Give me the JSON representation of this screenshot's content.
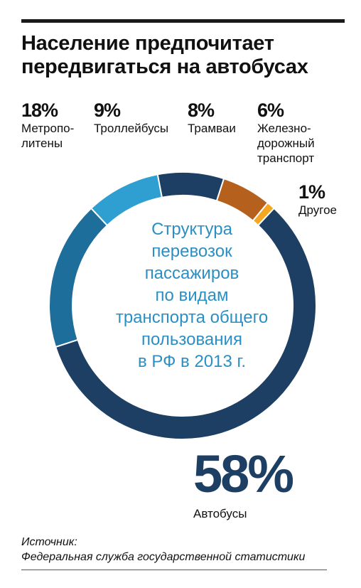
{
  "chart_data": {
    "type": "pie",
    "title": "Население предпочитает передвигаться на автобусах",
    "center_text": "Структура\nперевозок\nпассажиров\nпо видам\nтранспорта общего\nпользования\nв РФ в 2013 г.",
    "slices": [
      {
        "label": "Автобусы",
        "value": 58,
        "value_label": "58%",
        "color": "#1d3f63"
      },
      {
        "label": "Метропо-\nлитены",
        "value": 18,
        "value_label": "18%",
        "color": "#1e6e9c"
      },
      {
        "label": "Троллейбусы",
        "value": 9,
        "value_label": "9%",
        "color": "#2e9fd0"
      },
      {
        "label": "Трамваи",
        "value": 8,
        "value_label": "8%",
        "color": "#1d3f63"
      },
      {
        "label": "Железно-\nдорожный\nтранспорт",
        "value": 6,
        "value_label": "6%",
        "color": "#b5601d"
      },
      {
        "label": "Другое",
        "value": 1,
        "value_label": "1%",
        "color": "#f5a623"
      }
    ]
  },
  "source": {
    "label": "Источник:",
    "text": "Федеральная служба государственной статистики"
  }
}
